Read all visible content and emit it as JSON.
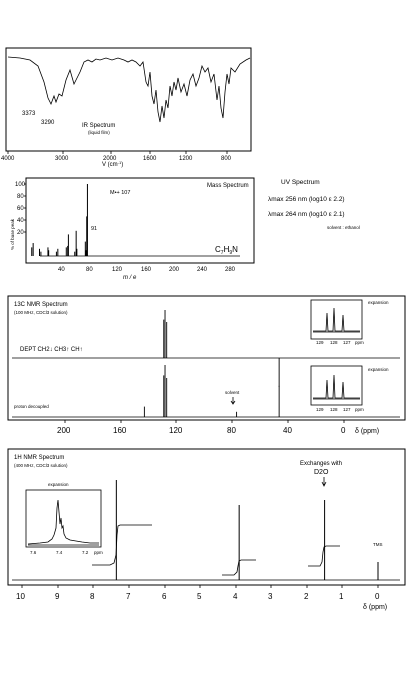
{
  "ir": {
    "title": "IR Spectrum",
    "subtitle": "(liquid film)",
    "peak_labels": [
      "3373",
      "3290"
    ],
    "x_ticks": [
      "4000",
      "3000",
      "2000",
      "1600",
      "1200",
      "800"
    ],
    "x_axis_label": "V (cm",
    "x_axis_sup": "-1",
    "x_axis_close": ")"
  },
  "mass": {
    "title": "Mass Spectrum",
    "molecular_ion": "M•+ 107",
    "peak_91": "91",
    "formula_main": "C",
    "formula_sub1": "7",
    "formula_mid": "H",
    "formula_sub2": "9",
    "formula_end": "N",
    "y_axis_label": "% of base peak",
    "y_ticks": [
      "100",
      "80",
      "60",
      "40",
      "20"
    ],
    "x_ticks": [
      "40",
      "80",
      "120",
      "160",
      "200",
      "240",
      "280"
    ],
    "x_axis_label": "m / e"
  },
  "uv": {
    "title": "UV Spectrum",
    "line1": "λmax 256 nm  (log10 ε  2.2)",
    "line2": "λmax 264 nm  (log10 ε  2.1)",
    "solvent": "solvent : ethanol"
  },
  "c13": {
    "title": "13C NMR Spectrum",
    "subtitle": "(100 MHz, CDCl3 solution)",
    "dept_label": "DEPT  CH2↓  CH3↑  CH↑",
    "expansion1": "expansion",
    "expansion2": "expansion",
    "exp_ticks": [
      "129",
      "128",
      "127",
      "ppm"
    ],
    "solvent_label": "solvent",
    "proton_decoupled": "proton decoupled",
    "x_ticks": [
      "200",
      "160",
      "120",
      "80",
      "40",
      "0"
    ],
    "x_axis_label": "δ (ppm)"
  },
  "h1": {
    "title": "1H NMR Spectrum",
    "subtitle": "(400 MHz, CDCl3 solution)",
    "expansion": "expansion",
    "exp_ticks": [
      "7.6",
      "7.4",
      "7.2",
      "ppm"
    ],
    "exchanges_line1": "Exchanges with",
    "exchanges_line2": "D2O",
    "tms": "TMS",
    "x_ticks": [
      "10",
      "9",
      "8",
      "7",
      "6",
      "5",
      "4",
      "3",
      "2",
      "1",
      "0"
    ],
    "x_axis_label": "δ (ppm)"
  },
  "chart_data": [
    {
      "type": "line",
      "title": "IR Spectrum",
      "xlabel": "V (cm-1)",
      "xlim": [
        4000,
        600
      ],
      "annotations": [
        {
          "x": 3373,
          "label": "3373"
        },
        {
          "x": 3290,
          "label": "3290"
        }
      ]
    },
    {
      "type": "bar",
      "title": "Mass Spectrum",
      "xlabel": "m / e",
      "ylabel": "% of base peak",
      "xlim": [
        0,
        300
      ],
      "ylim": [
        0,
        100
      ],
      "x": [
        28,
        30,
        39,
        41,
        51,
        52,
        63,
        65,
        77,
        79,
        80,
        89,
        91,
        92,
        104,
        105,
        106,
        107
      ],
      "values": [
        12,
        18,
        10,
        6,
        12,
        8,
        6,
        10,
        12,
        14,
        30,
        6,
        35,
        10,
        20,
        8,
        55,
        100
      ],
      "annotations": [
        {
          "x": 107,
          "label": "M•+ 107"
        },
        {
          "x": 91,
          "label": "91"
        }
      ]
    },
    {
      "type": "bar",
      "title": "13C NMR Spectrum",
      "xlabel": "δ (ppm)",
      "xlim": [
        240,
        -5
      ],
      "dept": [
        {
          "x": 129.2,
          "value": 80,
          "direction": "up"
        },
        {
          "x": 128.3,
          "value": 100,
          "direction": "up"
        },
        {
          "x": 127.1,
          "value": 75,
          "direction": "up"
        },
        {
          "x": 46.5,
          "value": 60,
          "direction": "down"
        }
      ],
      "proton_decoupled": [
        {
          "x": 143.1,
          "value": 20
        },
        {
          "x": 129.2,
          "value": 80
        },
        {
          "x": 128.3,
          "value": 100
        },
        {
          "x": 127.1,
          "value": 75
        },
        {
          "x": 77.0,
          "value": 10,
          "label": "solvent"
        },
        {
          "x": 46.5,
          "value": 60
        }
      ]
    },
    {
      "type": "line",
      "title": "1H NMR Spectrum",
      "xlabel": "δ (ppm)",
      "xlim": [
        10.5,
        -0.3
      ],
      "peaks": [
        {
          "x": 7.35,
          "value": 100,
          "integral_steps": 5
        },
        {
          "x": 3.9,
          "value": 75,
          "integral_steps": 2
        },
        {
          "x": 1.5,
          "value": 80,
          "integral_steps": 2,
          "label": "Exchanges with D2O"
        },
        {
          "x": 0.0,
          "value": 18,
          "label": "TMS"
        }
      ]
    }
  ]
}
